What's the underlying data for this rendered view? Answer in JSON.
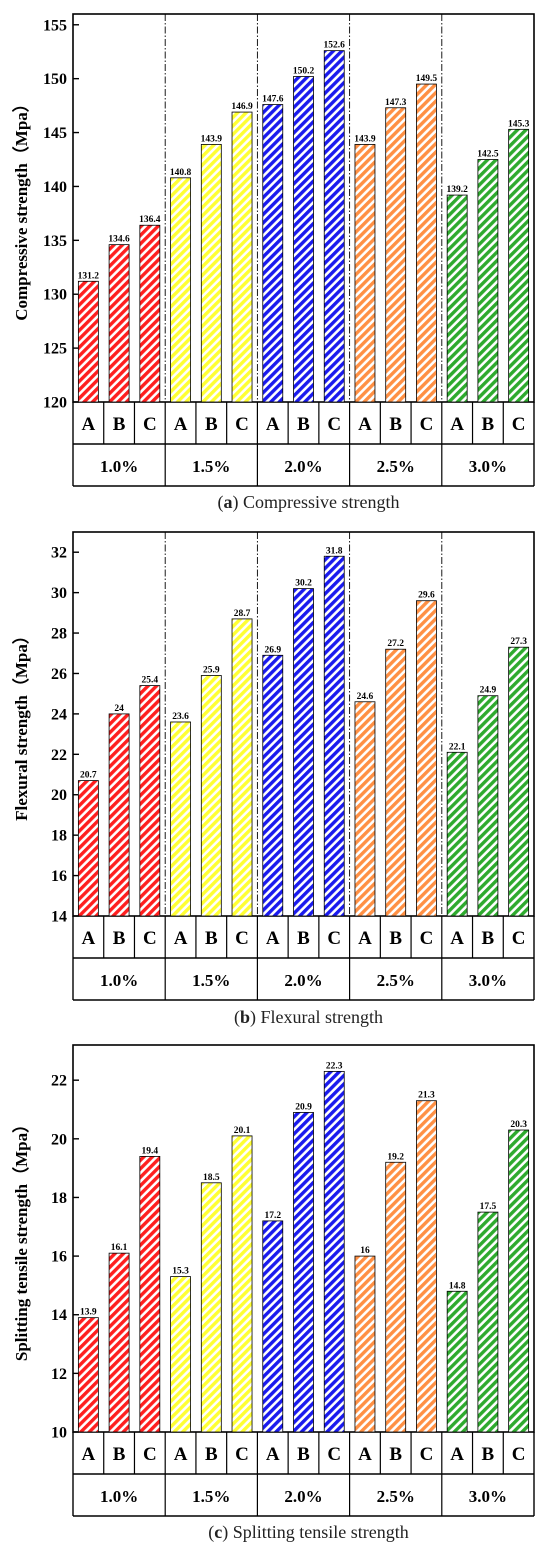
{
  "colors": {
    "1.0%": "#ff1f1f",
    "1.5%": "#ffff33",
    "2.0%": "#1a1aee",
    "2.5%": "#ff9044",
    "3.0%": "#2eaa2e"
  },
  "chart_data": [
    {
      "type": "bar",
      "caption_letter": "a",
      "caption_text": "Compressive strength",
      "ylabel": "Compressive strength（Mpa）",
      "ylim": [
        120,
        156
      ],
      "yticks": [
        120,
        125,
        130,
        135,
        140,
        145,
        150,
        155
      ],
      "groups": [
        "1.0%",
        "1.5%",
        "2.0%",
        "2.5%",
        "3.0%"
      ],
      "categories": [
        "A",
        "B",
        "C"
      ],
      "series": [
        {
          "group": "1.0%",
          "values": [
            131.2,
            134.6,
            136.4
          ],
          "labels": [
            "131.2",
            "134.6",
            "136.4"
          ]
        },
        {
          "group": "1.5%",
          "values": [
            140.8,
            143.9,
            146.9
          ],
          "labels": [
            "140.8",
            "143.9",
            "146.9"
          ]
        },
        {
          "group": "2.0%",
          "values": [
            147.6,
            150.2,
            152.6
          ],
          "labels": [
            "147.6",
            "150.2",
            "152.6"
          ]
        },
        {
          "group": "2.5%",
          "values": [
            143.9,
            147.3,
            149.5
          ],
          "labels": [
            "143.9",
            "147.3",
            "149.5"
          ]
        },
        {
          "group": "3.0%",
          "values": [
            139.2,
            142.5,
            145.3
          ],
          "labels": [
            "139.2",
            "142.5",
            "145.3"
          ]
        }
      ],
      "dividers": true
    },
    {
      "type": "bar",
      "caption_letter": "b",
      "caption_text": "Flexural strength",
      "ylabel": "Flexural strength（Mpa）",
      "ylim": [
        14,
        33
      ],
      "yticks": [
        14,
        16,
        18,
        20,
        22,
        24,
        26,
        28,
        30,
        32
      ],
      "groups": [
        "1.0%",
        "1.5%",
        "2.0%",
        "2.5%",
        "3.0%"
      ],
      "categories": [
        "A",
        "B",
        "C"
      ],
      "series": [
        {
          "group": "1.0%",
          "values": [
            20.7,
            24,
            25.4
          ],
          "labels": [
            "20.7",
            "24",
            "25.4"
          ]
        },
        {
          "group": "1.5%",
          "values": [
            23.6,
            25.9,
            28.7
          ],
          "labels": [
            "23.6",
            "25.9",
            "28.7"
          ]
        },
        {
          "group": "2.0%",
          "values": [
            26.9,
            30.2,
            31.8
          ],
          "labels": [
            "26.9",
            "30.2",
            "31.8"
          ]
        },
        {
          "group": "2.5%",
          "values": [
            24.6,
            27.2,
            29.6
          ],
          "labels": [
            "24.6",
            "27.2",
            "29.6"
          ]
        },
        {
          "group": "3.0%",
          "values": [
            22.1,
            24.9,
            27.3
          ],
          "labels": [
            "22.1",
            "24.9",
            "27.3"
          ]
        }
      ],
      "dividers": true
    },
    {
      "type": "bar",
      "caption_letter": "c",
      "caption_text": "Splitting tensile strength",
      "ylabel": "Splitting tensile strength（Mpa）",
      "ylim": [
        10,
        23.2
      ],
      "yticks": [
        10,
        12,
        14,
        16,
        18,
        20,
        22
      ],
      "groups": [
        "1.0%",
        "1.5%",
        "2.0%",
        "2.5%",
        "3.0%"
      ],
      "categories": [
        "A",
        "B",
        "C"
      ],
      "series": [
        {
          "group": "1.0%",
          "values": [
            13.9,
            16.1,
            19.4
          ],
          "labels": [
            "13.9",
            "16.1",
            "19.4"
          ]
        },
        {
          "group": "1.5%",
          "values": [
            15.3,
            18.5,
            20.1
          ],
          "labels": [
            "15.3",
            "18.5",
            "20.1"
          ]
        },
        {
          "group": "2.0%",
          "values": [
            17.2,
            20.9,
            22.3
          ],
          "labels": [
            "17.2",
            "20.9",
            "22.3"
          ]
        },
        {
          "group": "2.5%",
          "values": [
            16,
            19.2,
            21.3
          ],
          "labels": [
            "16",
            "19.2",
            "21.3"
          ]
        },
        {
          "group": "3.0%",
          "values": [
            14.8,
            17.5,
            20.3
          ],
          "labels": [
            "14.8",
            "17.5",
            "20.3"
          ]
        }
      ],
      "dividers": false
    }
  ]
}
